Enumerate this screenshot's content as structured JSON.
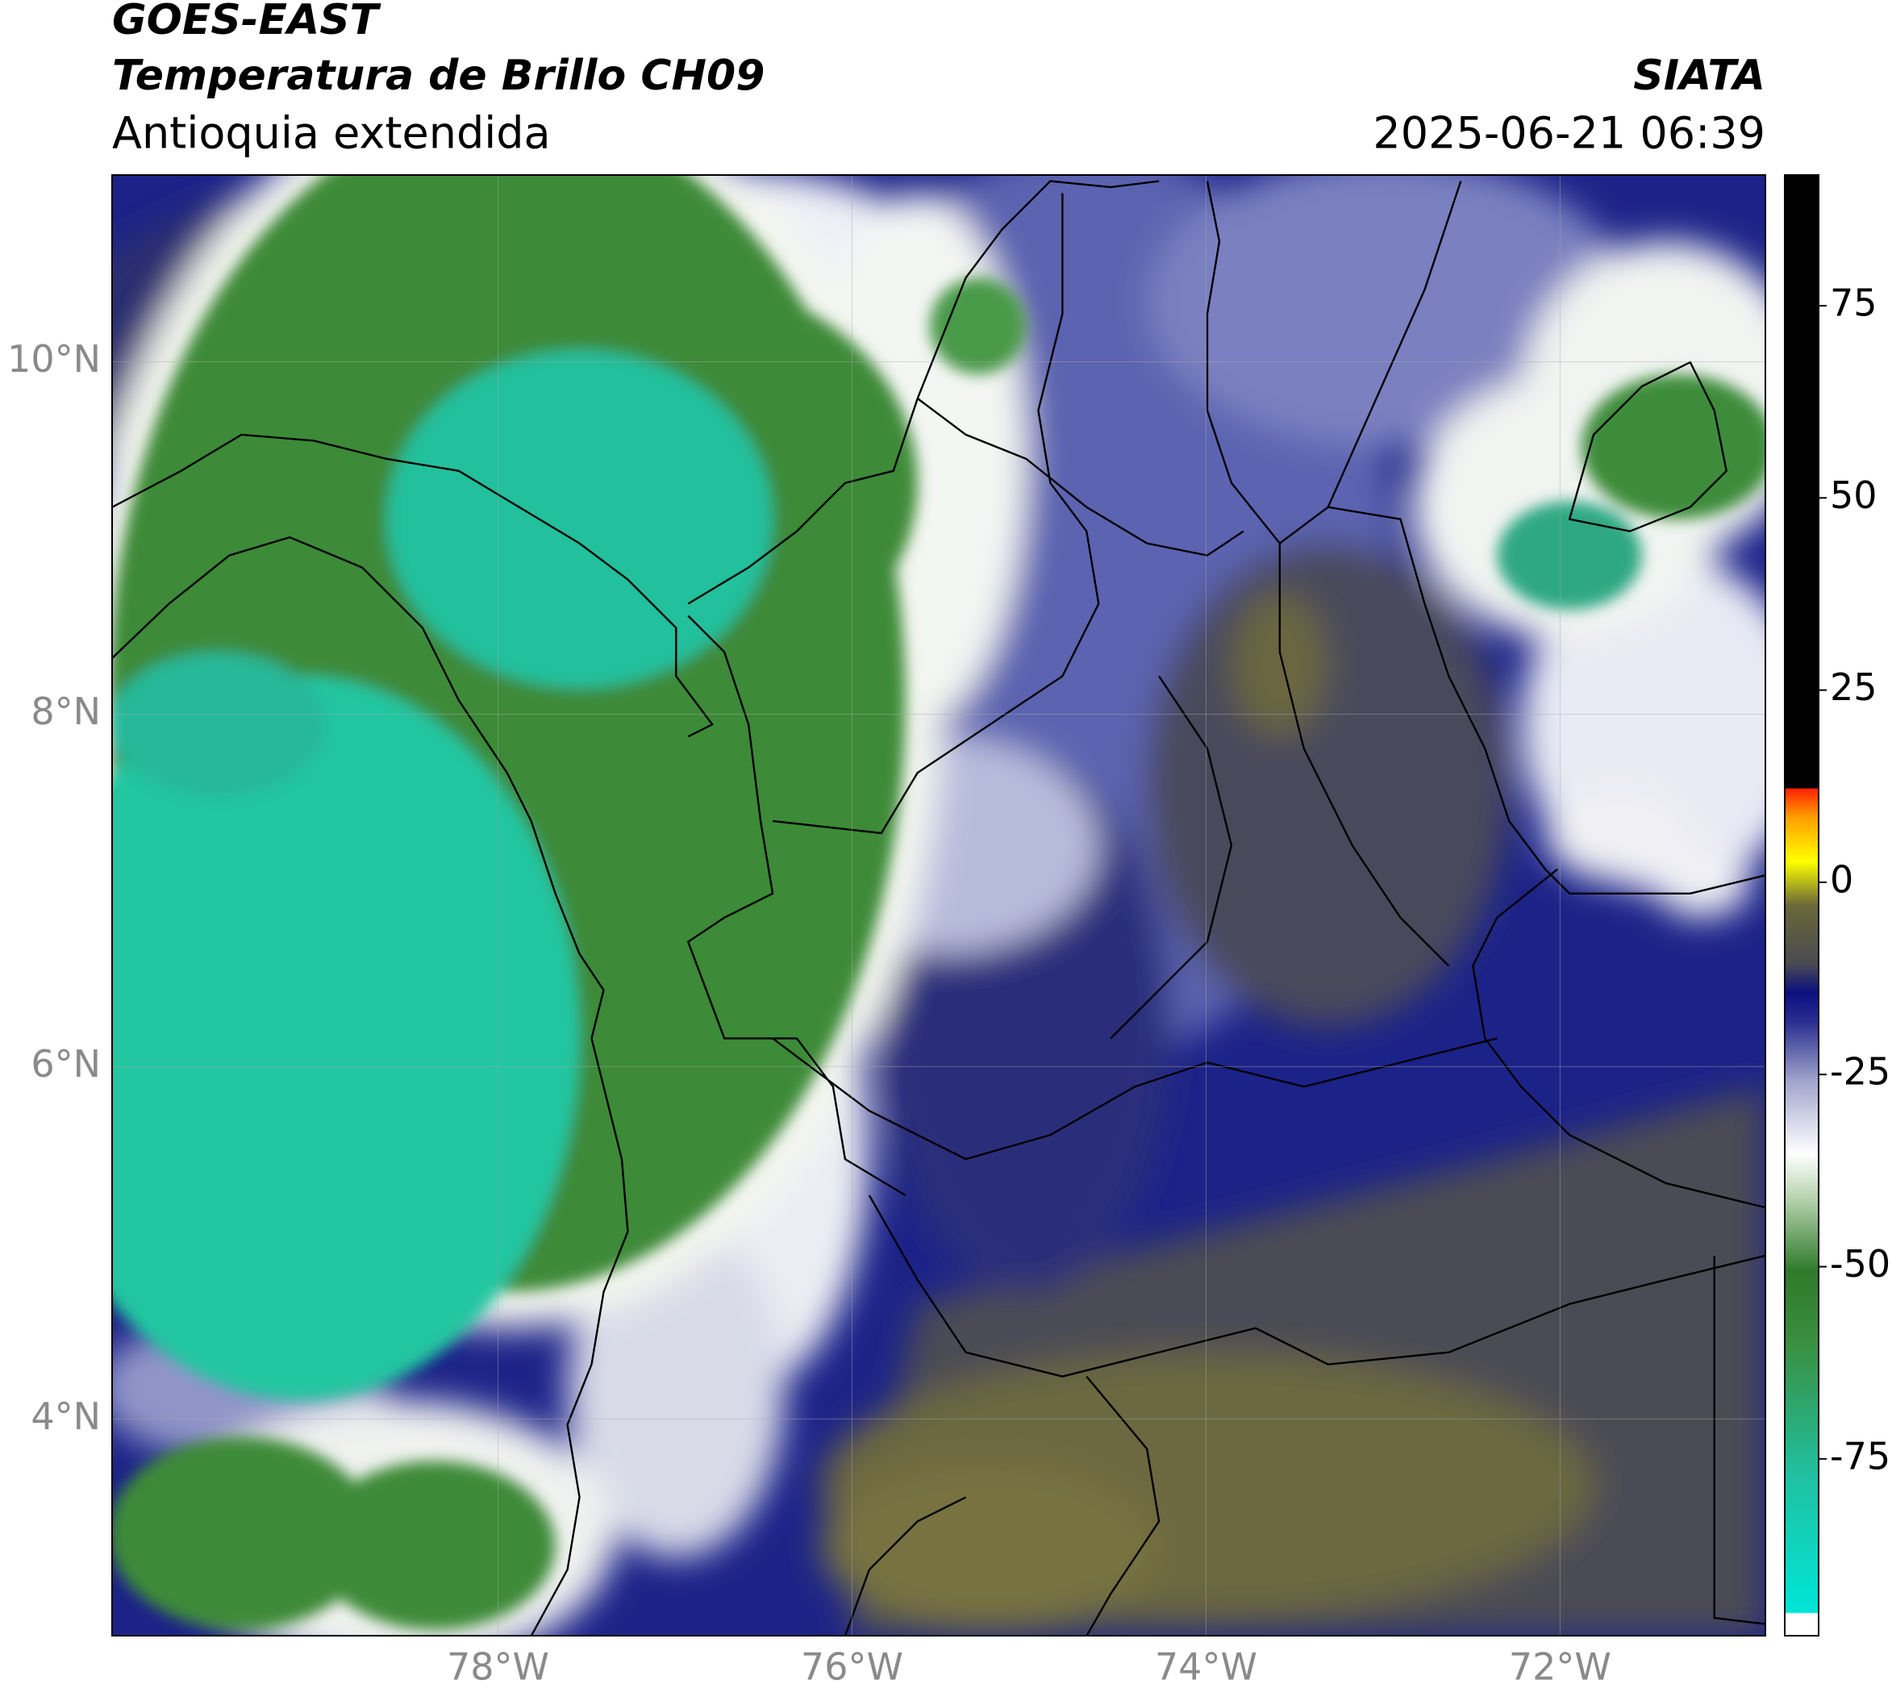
{
  "map": {
    "title": "GOES-EAST",
    "subtitle": "Temperatura de Brillo CH09",
    "region": "Antioquia extendida",
    "source": "SIATA",
    "timestamp": "2025-06-21 06:39",
    "lonlim": [
      -80.18,
      -70.84
    ],
    "latlim": [
      2.77,
      11.06
    ],
    "lon_ticks": [
      {
        "value": -78,
        "label": "78°W"
      },
      {
        "value": -76,
        "label": "76°W"
      },
      {
        "value": -74,
        "label": "74°W"
      },
      {
        "value": -72,
        "label": "72°W"
      }
    ],
    "lat_ticks": [
      {
        "value": 10,
        "label": "10°N"
      },
      {
        "value": 8,
        "label": "8°N"
      },
      {
        "value": 6,
        "label": "6°N"
      },
      {
        "value": 4,
        "label": "4°N"
      }
    ],
    "colorbar": {
      "clim": [
        -98,
        92
      ],
      "ticks": [
        75,
        50,
        25,
        0,
        -25,
        -50,
        -75
      ]
    }
  }
}
